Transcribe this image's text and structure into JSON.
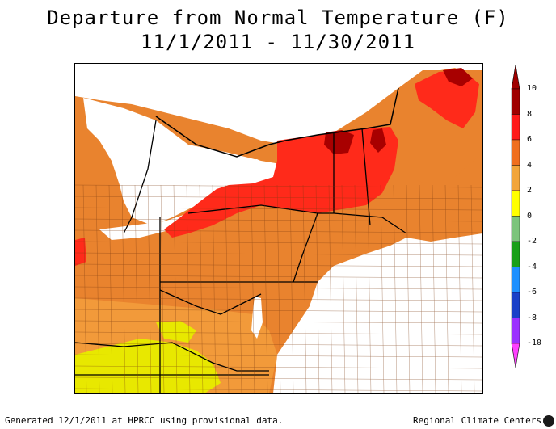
{
  "title": {
    "line1": "Departure from Normal Temperature (F)",
    "line2": "11/1/2011 - 11/30/2011"
  },
  "legend": {
    "labels": [
      "10",
      "8",
      "6",
      "4",
      "2",
      "0",
      "-2",
      "-4",
      "-6",
      "-8",
      "-10"
    ],
    "colors": {
      "8_to_10": "#a00000",
      "6_to_8": "#ff1a1a",
      "4_to_6": "#f06f1e",
      "2_to_4": "#f2a53a",
      "0_to_2": "#ffff00",
      "-2_to_0": "#7cc47c",
      "-4_to_-2": "#18a018",
      "-6_to_-4": "#1e90ff",
      "-8_to_-6": "#1a40c8",
      "-10_to_-8": "#9b30ff",
      "below_-10": "#ff40ff"
    }
  },
  "map_colors": {
    "water": "#ffffff",
    "land_base": "#e9832e",
    "warm_red": "#ff2a1a",
    "dark_red": "#a80000",
    "light_orange": "#f29a3a",
    "yellow": "#e8e800",
    "boundary": "#000000"
  },
  "footer": {
    "left": "Generated 12/1/2011 at HPRCC using provisional data.",
    "right": "Regional Climate Centers"
  }
}
